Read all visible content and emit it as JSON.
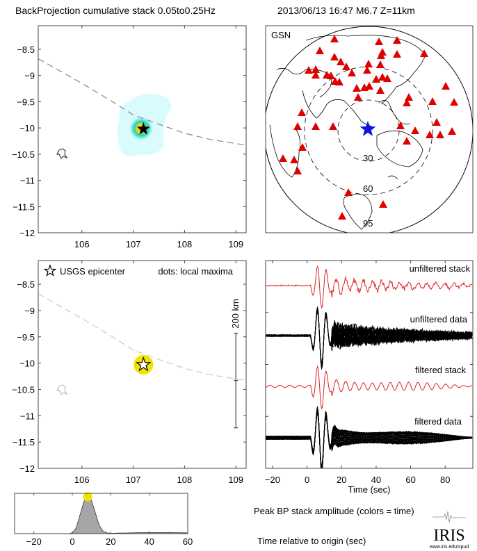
{
  "header": {
    "title": "BackProjection cumulative stack 0.05to0.25Hz",
    "event": "2013/06/13 16:47  M6.7  Z=11km"
  },
  "colors": {
    "station": "#e00000",
    "epicenter_globe": "#1010e0",
    "stack_trace": "#e02020",
    "data_trace": "#000000",
    "peak_dot": "#f2e200",
    "area_fill": "#a6a6a6",
    "trench": "#888888"
  },
  "chart_data": [
    {
      "type": "heatmap",
      "id": "bp-stack-map",
      "title": "",
      "xlabel": "",
      "ylabel": "",
      "xlim": [
        105.15,
        109.2
      ],
      "ylim": [
        -12,
        -8.05
      ],
      "xticks": [
        "106",
        "107",
        "108",
        "109"
      ],
      "yticks": [
        "-8.5",
        "-9",
        "-9.5",
        "-10",
        "-10.5",
        "-11",
        "-11.5",
        "-12"
      ],
      "epicenter": {
        "lon": 107.2,
        "lat": -10.02,
        "marker": "black star"
      },
      "energy_peak": {
        "lon": 107.2,
        "lat": -10.02
      },
      "trench_line": [
        [
          105.15,
          -8.68
        ],
        [
          106.0,
          -9.15
        ],
        [
          106.6,
          -9.5
        ],
        [
          107.0,
          -9.75
        ],
        [
          107.5,
          -9.93
        ],
        [
          108.0,
          -10.1
        ],
        [
          108.5,
          -10.22
        ],
        [
          109.2,
          -10.33
        ]
      ],
      "island_outline": {
        "lon": 105.65,
        "lat": -10.48
      }
    },
    {
      "type": "scatter",
      "id": "station-globe",
      "label": "GSN",
      "distance_rings": [
        "30",
        "60",
        "95"
      ],
      "epicenter_marker": "blue star",
      "stations_count": 55
    },
    {
      "type": "scatter",
      "id": "local-maxima-map",
      "legend": {
        "star": "USGS epicenter",
        "note": "dots: local maxima"
      },
      "xlim": [
        105.15,
        109.2
      ],
      "ylim": [
        -12,
        -8.05
      ],
      "xticks": [
        "106",
        "107",
        "108",
        "109"
      ],
      "yticks": [
        "-8.5",
        "-9",
        "-9.5",
        "-10",
        "-10.5",
        "-11",
        "-11.5",
        "-12"
      ],
      "epicenter": {
        "lon": 107.2,
        "lat": -10.03
      },
      "local_maxima": [
        {
          "lon": 107.2,
          "lat": -10.03,
          "time": 8
        }
      ],
      "scale_bar": {
        "label": "200 km",
        "lon": 109.0,
        "lat_top": -9.43,
        "lat_bottom": -11.23
      },
      "trench_line": [
        [
          105.15,
          -8.68
        ],
        [
          106.0,
          -9.15
        ],
        [
          106.6,
          -9.5
        ],
        [
          107.0,
          -9.75
        ],
        [
          107.5,
          -9.93
        ],
        [
          108.0,
          -10.1
        ],
        [
          108.5,
          -10.22
        ],
        [
          109.2,
          -10.33
        ]
      ]
    },
    {
      "type": "line",
      "id": "seismograms",
      "xlabel": "Time (sec)",
      "xlim": [
        -24,
        96
      ],
      "xticks": [
        "-20",
        "0",
        "20",
        "40",
        "60",
        "80"
      ],
      "series": [
        {
          "name": "unfiltered stack",
          "color": "red"
        },
        {
          "name": "unfiltered data",
          "color": "black"
        },
        {
          "name": "filtered stack",
          "color": "red"
        },
        {
          "name": "filtered data",
          "color": "black"
        }
      ],
      "onset_time": 2,
      "main_pulses": [
        6,
        9,
        12
      ]
    },
    {
      "type": "area",
      "id": "peak-amplitude",
      "label": "Peak BP stack amplitude (colors = time)",
      "xlabel": "Time relative to origin (sec)",
      "xlim": [
        -30,
        60
      ],
      "xticks": [
        "-20",
        "0",
        "20",
        "40",
        "60"
      ],
      "x": [
        -30,
        -2,
        0,
        2,
        4,
        6,
        8,
        10,
        12,
        14,
        16,
        18,
        20,
        30,
        40,
        50,
        60
      ],
      "values": [
        0,
        0,
        0.02,
        0.15,
        0.5,
        0.85,
        1.0,
        0.88,
        0.55,
        0.22,
        0.06,
        0.02,
        0.01,
        0.02,
        0.03,
        0.03,
        0.02
      ],
      "peak": {
        "time": 8,
        "value": 1.0
      }
    }
  ],
  "footer": {
    "logo": "IRIS",
    "url": "www.iris.edu/spud"
  }
}
